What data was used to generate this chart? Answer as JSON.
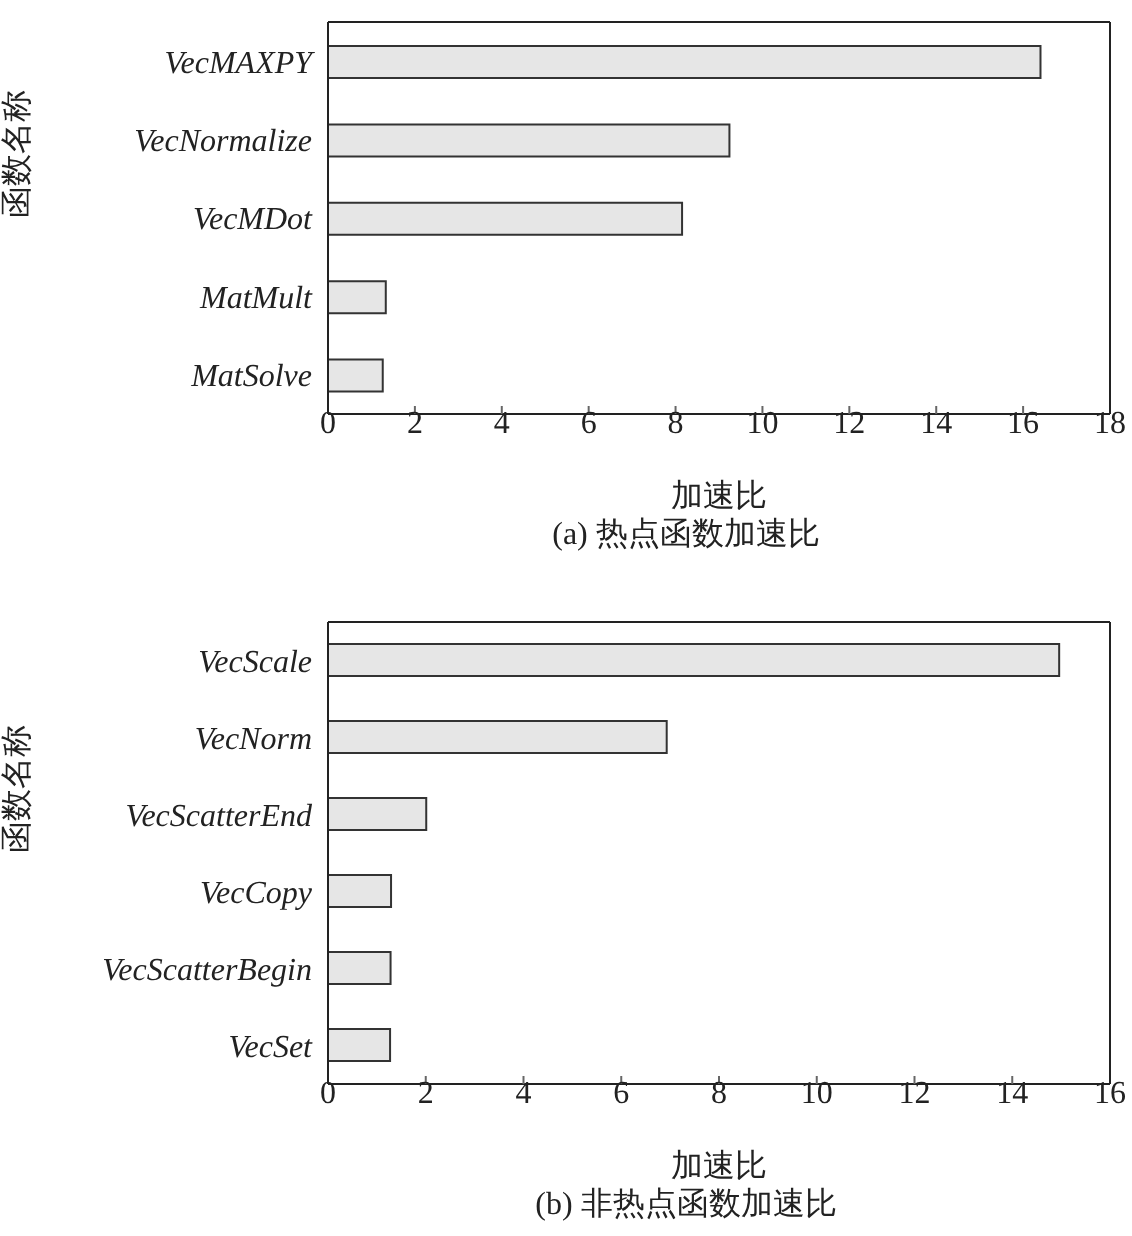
{
  "chart_data": [
    {
      "type": "bar",
      "orientation": "horizontal",
      "title": "(a) 热点函数加速比",
      "xlabel": "加速比",
      "ylabel": "函数名称",
      "categories": [
        "VecMAXPY",
        "VecNormalize",
        "VecMDot",
        "MatMult",
        "MatSolve"
      ],
      "values": [
        16.4,
        9.24,
        8.15,
        1.33,
        1.26
      ],
      "color": "#e6e6e6",
      "xlim": [
        0,
        18
      ],
      "xticks": [
        0,
        2,
        4,
        6,
        8,
        10,
        12,
        14,
        16,
        18
      ],
      "grid": false
    },
    {
      "type": "bar",
      "orientation": "horizontal",
      "title": "(b) 非热点函数加速比",
      "xlabel": "加速比",
      "ylabel": "函数名称",
      "categories": [
        "VecScale",
        "VecNorm",
        "VecScatterEnd",
        "VecCopy",
        "VecScatterBegin",
        "VecSet"
      ],
      "values": [
        14.96,
        6.93,
        2.01,
        1.29,
        1.28,
        1.27
      ],
      "color": "#e6e6e6",
      "xlim": [
        0,
        16
      ],
      "xticks": [
        0,
        2,
        4,
        6,
        8,
        10,
        12,
        14,
        16
      ],
      "grid": false
    }
  ]
}
